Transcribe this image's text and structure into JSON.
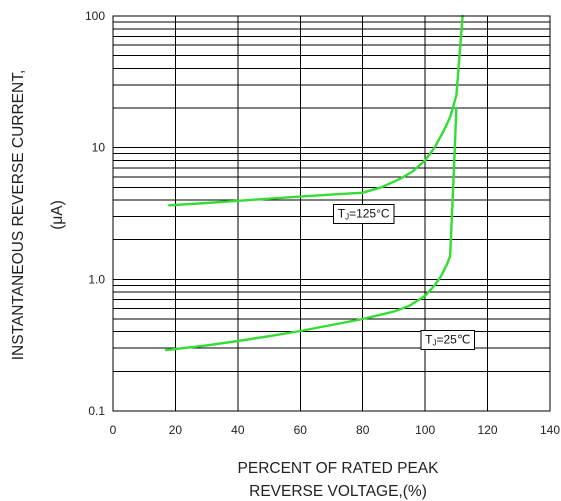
{
  "chart_data": {
    "type": "line",
    "title": "",
    "xlabel": [
      "PERCENT OF RATED PEAK",
      "REVERSE VOLTAGE,(%)"
    ],
    "ylabel": [
      "INSTANTANEOUS REVERSE CURRENT,",
      "(μA)"
    ],
    "xlim": [
      0,
      140
    ],
    "ylim": [
      0.1,
      100
    ],
    "y_scale": "log",
    "grid": true,
    "x_ticks": [
      0,
      20,
      40,
      60,
      80,
      100,
      120,
      140
    ],
    "x_tick_labels": [
      "0",
      "20",
      "40",
      "60",
      "80",
      "100",
      "120",
      "140"
    ],
    "y_ticks": [
      0.1,
      1,
      10,
      100
    ],
    "y_tick_labels": [
      "0.1",
      "1.0",
      "10",
      "100"
    ],
    "line_color": "#33dd33",
    "series": [
      {
        "annotation_main": "T",
        "annotation_sub": "J",
        "annotation_rest": "=125°C",
        "annotation_anchor": [
          72,
          2.95
        ],
        "x": [
          18,
          30,
          40,
          50,
          60,
          70,
          80,
          86,
          92,
          96,
          100,
          103,
          106,
          108,
          110,
          111,
          112
        ],
        "y": [
          3.65,
          3.8,
          3.95,
          4.1,
          4.25,
          4.4,
          4.55,
          5.0,
          5.8,
          6.6,
          8.0,
          10.0,
          13.5,
          17.0,
          25,
          50,
          100
        ]
      },
      {
        "annotation_main": "T",
        "annotation_sub": "J",
        "annotation_rest": "=25℃",
        "annotation_anchor": [
          100,
          0.325
        ],
        "x": [
          17,
          30,
          40,
          50,
          60,
          70,
          80,
          90,
          95,
          100,
          103,
          105,
          107,
          108,
          109,
          110
        ],
        "y": [
          0.29,
          0.315,
          0.34,
          0.37,
          0.405,
          0.45,
          0.5,
          0.57,
          0.63,
          0.75,
          0.9,
          1.05,
          1.3,
          1.5,
          5.0,
          20
        ]
      }
    ]
  }
}
